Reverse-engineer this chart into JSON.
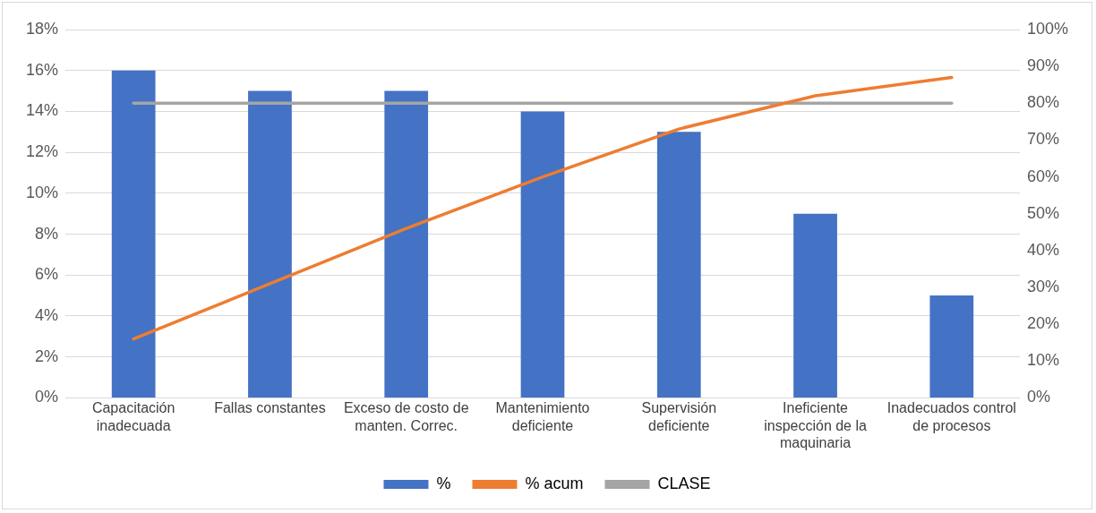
{
  "chart_data": {
    "type": "bar",
    "categories": [
      "Capacitación inadecuada",
      "Fallas constantes",
      "Exceso de costo de manten. Correc.",
      "Mantenimiento deficiente",
      "Supervisión deficiente",
      "Ineficiente inspección de la maquinaria",
      "Inadecuados control de procesos"
    ],
    "series": [
      {
        "name": "%",
        "color": "#4472c4",
        "values": [
          16,
          15,
          15,
          14,
          13,
          9,
          5
        ]
      },
      {
        "name": "% acum",
        "type": "line",
        "axis": "y2",
        "color": "#ed7d31",
        "values": [
          16,
          31,
          46,
          60,
          73,
          82,
          87
        ]
      },
      {
        "name": "CLASE",
        "type": "line",
        "axis": "y2",
        "color": "#a5a5a5",
        "values": [
          80,
          80,
          80,
          80,
          80,
          80,
          80
        ]
      }
    ],
    "ylim": [
      0,
      18
    ],
    "yticks": [
      {
        "value": 0,
        "label": "0%"
      },
      {
        "value": 2,
        "label": "2%"
      },
      {
        "value": 4,
        "label": "4%"
      },
      {
        "value": 6,
        "label": "6%"
      },
      {
        "value": 8,
        "label": "8%"
      },
      {
        "value": 10,
        "label": "10%"
      },
      {
        "value": 12,
        "label": "12%"
      },
      {
        "value": 14,
        "label": "14%"
      },
      {
        "value": 16,
        "label": "16%"
      },
      {
        "value": 18,
        "label": "18%"
      }
    ],
    "y2lim": [
      0,
      100
    ],
    "y2ticks": [
      {
        "value": 0,
        "label": "0%"
      },
      {
        "value": 10,
        "label": "10%"
      },
      {
        "value": 20,
        "label": "20%"
      },
      {
        "value": 30,
        "label": "30%"
      },
      {
        "value": 40,
        "label": "40%"
      },
      {
        "value": 50,
        "label": "50%"
      },
      {
        "value": 60,
        "label": "60%"
      },
      {
        "value": 70,
        "label": "70%"
      },
      {
        "value": 80,
        "label": "80%"
      },
      {
        "value": 90,
        "label": "90%"
      },
      {
        "value": 100,
        "label": "100%"
      }
    ],
    "grid": "y",
    "legend": "bottom",
    "marker": "none",
    "line_style": "solid"
  }
}
